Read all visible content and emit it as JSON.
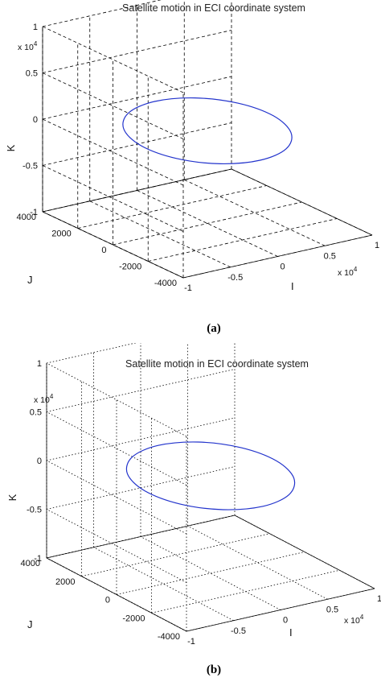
{
  "chart_data": [
    {
      "type": "line",
      "panel": "a",
      "title": "Satellite motion in ECI coordinate system",
      "xlabel": "I",
      "ylabel": "J",
      "zlabel": "K",
      "x_ticks": [
        "-1",
        "-0.5",
        "0",
        "0.5",
        "1"
      ],
      "y_ticks": [
        "-4000",
        "-2000",
        "0",
        "2000",
        "4000"
      ],
      "z_ticks": [
        "-1",
        "-0.5",
        "0",
        "0.5",
        "1"
      ],
      "x_exponent": {
        "base": "x 10",
        "power": "4"
      },
      "z_exponent": {
        "base": "x 10",
        "power": "4"
      },
      "xlim": [
        -10000,
        10000
      ],
      "ylim": [
        -4000,
        4000
      ],
      "zlim": [
        -10000,
        10000
      ],
      "grid": "dashed",
      "color": "#2233cc",
      "caption": "(a)",
      "series": [
        {
          "x": [
            7000,
            6062,
            3500,
            0,
            -3500,
            -6062,
            -7000,
            -6062,
            -3500,
            0,
            3500,
            6062,
            7000
          ],
          "y": [
            0,
            1500,
            2598,
            3000,
            2598,
            1500,
            0,
            -1500,
            -2598,
            -3000,
            -2598,
            -1500,
            0
          ],
          "z": [
            0,
            250,
            433,
            500,
            433,
            250,
            0,
            -250,
            -433,
            -500,
            -433,
            -250,
            0
          ]
        }
      ]
    },
    {
      "type": "line",
      "panel": "b",
      "title": "Satellite motion in ECI coordinate system",
      "xlabel": "I",
      "ylabel": "J",
      "zlabel": "K",
      "x_ticks": [
        "-1",
        "-0.5",
        "0",
        "0.5",
        "1"
      ],
      "y_ticks": [
        "-4000",
        "-2000",
        "0",
        "2000",
        "4000"
      ],
      "z_ticks": [
        "-1",
        "-0.5",
        "0",
        "0.5",
        "1"
      ],
      "x_exponent": {
        "base": "x 10",
        "power": "4"
      },
      "z_exponent": {
        "base": "x 10",
        "power": "4"
      },
      "xlim": [
        -10000,
        10000
      ],
      "ylim": [
        -4000,
        4000
      ],
      "zlim": [
        -10000,
        10000
      ],
      "grid": "dotted",
      "color": "#2233cc",
      "caption": "(b)",
      "series": [
        {
          "x": [
            7000,
            6062,
            3500,
            0,
            -3500,
            -6062,
            -7000,
            -6062,
            -3500,
            0,
            3500,
            6062,
            7000
          ],
          "y": [
            0,
            1500,
            2598,
            3000,
            2598,
            1500,
            0,
            -1500,
            -2598,
            -3000,
            -2598,
            -1500,
            0
          ],
          "z": [
            0,
            150,
            260,
            300,
            260,
            150,
            0,
            -150,
            -260,
            -300,
            -260,
            -150,
            0
          ]
        }
      ]
    }
  ]
}
